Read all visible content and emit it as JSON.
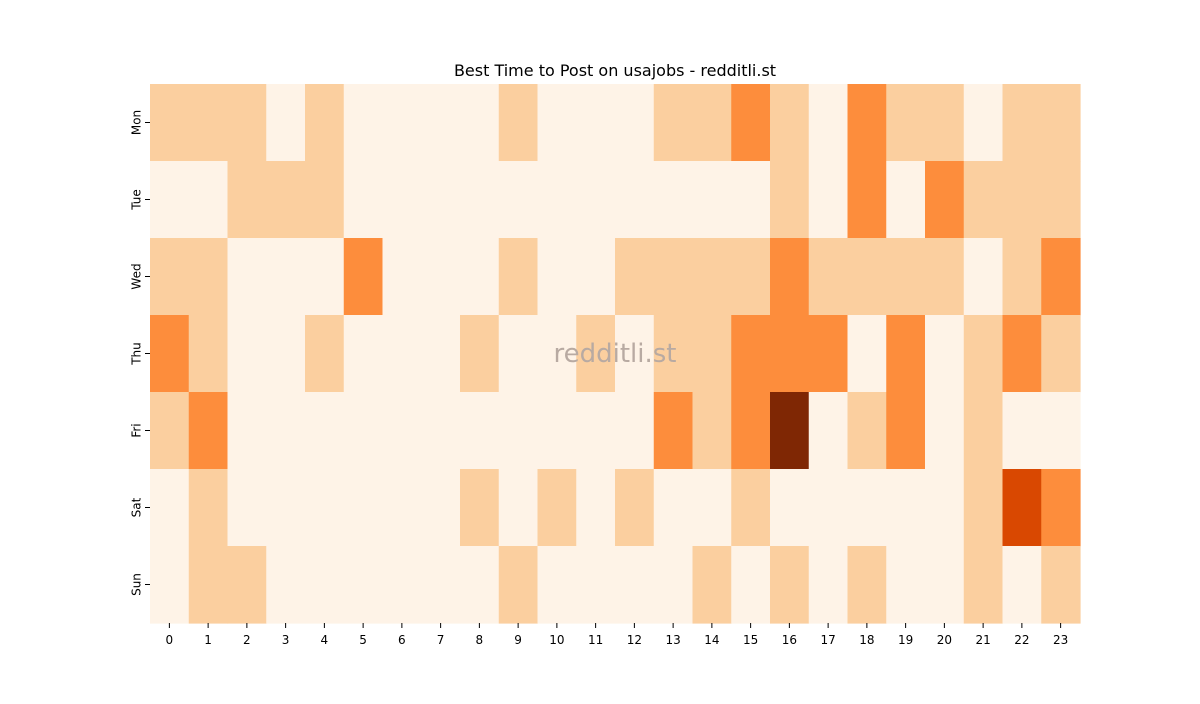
{
  "chart_data": {
    "type": "heatmap",
    "title": "Best Time to Post on usajobs - redditli.st",
    "xlabel": "",
    "ylabel": "",
    "x_categories": [
      "0",
      "1",
      "2",
      "3",
      "4",
      "5",
      "6",
      "7",
      "8",
      "9",
      "10",
      "11",
      "12",
      "13",
      "14",
      "15",
      "16",
      "17",
      "18",
      "19",
      "20",
      "21",
      "22",
      "23"
    ],
    "y_categories": [
      "Mon",
      "Tue",
      "Wed",
      "Thu",
      "Fri",
      "Sat",
      "Sun"
    ],
    "values": [
      [
        1,
        1,
        1,
        0,
        1,
        0,
        0,
        0,
        0,
        1,
        0,
        0,
        0,
        1,
        1,
        2,
        1,
        0,
        2,
        1,
        1,
        0,
        1,
        1
      ],
      [
        0,
        0,
        1,
        1,
        1,
        0,
        0,
        0,
        0,
        0,
        0,
        0,
        0,
        0,
        0,
        0,
        1,
        0,
        2,
        0,
        2,
        1,
        1,
        1
      ],
      [
        1,
        1,
        0,
        0,
        0,
        2,
        0,
        0,
        0,
        1,
        0,
        0,
        1,
        1,
        1,
        1,
        2,
        1,
        1,
        1,
        1,
        0,
        1,
        2
      ],
      [
        2,
        1,
        0,
        0,
        1,
        0,
        0,
        0,
        1,
        0,
        0,
        1,
        0,
        1,
        1,
        2,
        2,
        2,
        0,
        2,
        0,
        1,
        2,
        1
      ],
      [
        1,
        2,
        0,
        0,
        0,
        0,
        0,
        0,
        0,
        0,
        0,
        0,
        0,
        2,
        1,
        2,
        4,
        0,
        1,
        2,
        0,
        1,
        0,
        0
      ],
      [
        0,
        1,
        0,
        0,
        0,
        0,
        0,
        0,
        1,
        0,
        1,
        0,
        1,
        0,
        0,
        1,
        0,
        0,
        0,
        0,
        0,
        1,
        3,
        2
      ],
      [
        0,
        1,
        1,
        0,
        0,
        0,
        0,
        0,
        0,
        1,
        0,
        0,
        0,
        0,
        1,
        0,
        1,
        0,
        1,
        0,
        0,
        1,
        0,
        1
      ]
    ],
    "color_levels": {
      "0": "#fef3e7",
      "1": "#fbcf9f",
      "2": "#fd8d3c",
      "3": "#d94801",
      "4": "#7f2704"
    },
    "watermark": "redditli.st",
    "grid": false,
    "colorbar": false
  }
}
